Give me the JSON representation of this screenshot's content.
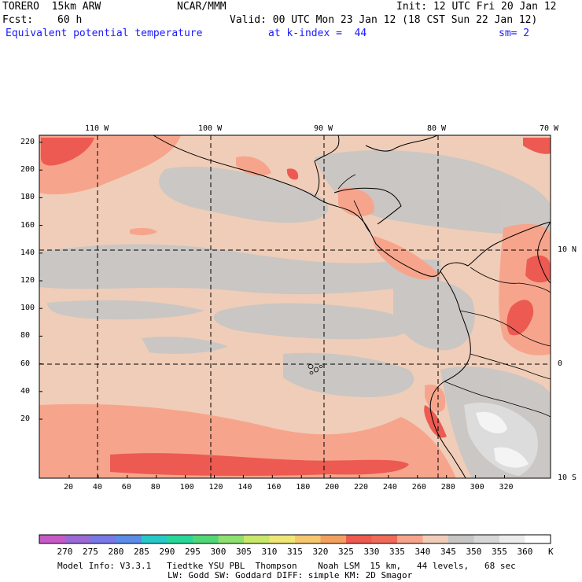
{
  "header": {
    "model": "TORERO  15km ARW",
    "center": "NCAR/MMM",
    "init": "Init: 12 UTC Fri 20 Jan 12",
    "fcst_label": "Fcst:",
    "fcst_value": "60 h",
    "valid": "Valid: 00 UTC Mon 23 Jan 12 (18 CST Sun 22 Jan 12)",
    "field": "Equivalent potential temperature",
    "level": "at k-index =  44",
    "smooth": "sm= 2"
  },
  "map": {
    "lon_labels": [
      "110 W",
      "100 W",
      "90 W",
      "80 W",
      "70 W"
    ],
    "lat_labels": [
      "10 N",
      "0",
      "10 S"
    ],
    "y_ticks": [
      "220",
      "200",
      "180",
      "160",
      "140",
      "120",
      "100",
      "80",
      "60",
      "40",
      "20"
    ],
    "x_ticks": [
      "20",
      "40",
      "60",
      "80",
      "100",
      "120",
      "140",
      "160",
      "180",
      "200",
      "220",
      "240",
      "260",
      "280",
      "300",
      "320"
    ],
    "background_color": "#f0cdb8",
    "gray_color": "#c8c6c4",
    "salmon_color": "#f6a58c",
    "red_color": "#ec5a52"
  },
  "colorbar": {
    "labels": [
      "270",
      "275",
      "280",
      "285",
      "290",
      "295",
      "300",
      "305",
      "310",
      "315",
      "320",
      "325",
      "330",
      "335",
      "340",
      "345",
      "350",
      "355",
      "360"
    ],
    "unit": "K",
    "colors": [
      "#c85ac8",
      "#9a6ad6",
      "#7878e8",
      "#5a8ce8",
      "#28c8c8",
      "#28d69a",
      "#50d878",
      "#8ee070",
      "#c8e86a",
      "#f0e678",
      "#f5c870",
      "#f2a060",
      "#ee5a50",
      "#f06a5a",
      "#f6a58c",
      "#f0cdb8",
      "#c8c6c4",
      "#d8d8d8",
      "#ececec",
      "#ffffff"
    ]
  },
  "footer": {
    "line1": "Model Info: V3.3.1   Tiedtke YSU PBL  Thompson    Noah LSM  15 km,   44 levels,   68 sec",
    "line2": "LW: Godd SW: Goddard DIFF: simple KM: 2D Smagor"
  }
}
